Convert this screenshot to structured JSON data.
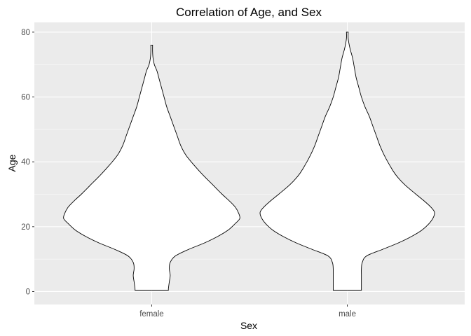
{
  "chart_data": {
    "type": "violin",
    "title": "Correlation of Age, and Sex",
    "xlabel": "Sex",
    "ylabel": "Age",
    "categories": [
      "female",
      "male"
    ],
    "ylim": [
      -4,
      83
    ],
    "yticks": [
      0,
      20,
      40,
      60,
      80
    ],
    "grid": true,
    "legend": "none",
    "colors": {
      "panel": "#ebebeb",
      "grid": "#ffffff",
      "fill": "#ffffff",
      "outline": "#000000"
    },
    "densities": [
      {
        "category": "female",
        "range": [
          0.4,
          76
        ],
        "profile": [
          [
            0.4,
            0.19
          ],
          [
            1,
            0.19
          ],
          [
            3,
            0.2
          ],
          [
            5,
            0.21
          ],
          [
            7,
            0.2
          ],
          [
            9,
            0.21
          ],
          [
            11,
            0.27
          ],
          [
            13,
            0.42
          ],
          [
            15,
            0.6
          ],
          [
            17,
            0.75
          ],
          [
            19,
            0.87
          ],
          [
            21,
            0.95
          ],
          [
            22.5,
            1.0
          ],
          [
            24,
            0.99
          ],
          [
            26,
            0.95
          ],
          [
            28,
            0.88
          ],
          [
            30,
            0.8
          ],
          [
            33,
            0.69
          ],
          [
            36,
            0.58
          ],
          [
            39,
            0.48
          ],
          [
            42,
            0.39
          ],
          [
            45,
            0.33
          ],
          [
            48,
            0.29
          ],
          [
            51,
            0.25
          ],
          [
            54,
            0.21
          ],
          [
            57,
            0.17
          ],
          [
            60,
            0.14
          ],
          [
            63,
            0.11
          ],
          [
            66,
            0.08
          ],
          [
            68,
            0.06
          ],
          [
            70,
            0.03
          ],
          [
            72,
            0.015
          ],
          [
            74,
            0.01
          ],
          [
            76,
            0.01
          ]
        ]
      },
      {
        "category": "male",
        "range": [
          0.4,
          80
        ],
        "profile": [
          [
            0.4,
            0.16
          ],
          [
            1,
            0.16
          ],
          [
            3,
            0.16
          ],
          [
            5,
            0.16
          ],
          [
            7,
            0.16
          ],
          [
            9,
            0.17
          ],
          [
            11,
            0.22
          ],
          [
            13,
            0.4
          ],
          [
            15,
            0.58
          ],
          [
            17,
            0.73
          ],
          [
            19,
            0.85
          ],
          [
            21,
            0.93
          ],
          [
            23,
            0.98
          ],
          [
            24.5,
            0.99
          ],
          [
            26,
            0.95
          ],
          [
            28,
            0.87
          ],
          [
            30,
            0.78
          ],
          [
            33,
            0.65
          ],
          [
            36,
            0.55
          ],
          [
            39,
            0.48
          ],
          [
            42,
            0.42
          ],
          [
            45,
            0.37
          ],
          [
            48,
            0.33
          ],
          [
            51,
            0.29
          ],
          [
            54,
            0.25
          ],
          [
            57,
            0.2
          ],
          [
            60,
            0.16
          ],
          [
            63,
            0.13
          ],
          [
            66,
            0.1
          ],
          [
            69,
            0.08
          ],
          [
            72,
            0.06
          ],
          [
            75,
            0.03
          ],
          [
            78,
            0.01
          ],
          [
            80,
            0.01
          ]
        ]
      }
    ]
  }
}
